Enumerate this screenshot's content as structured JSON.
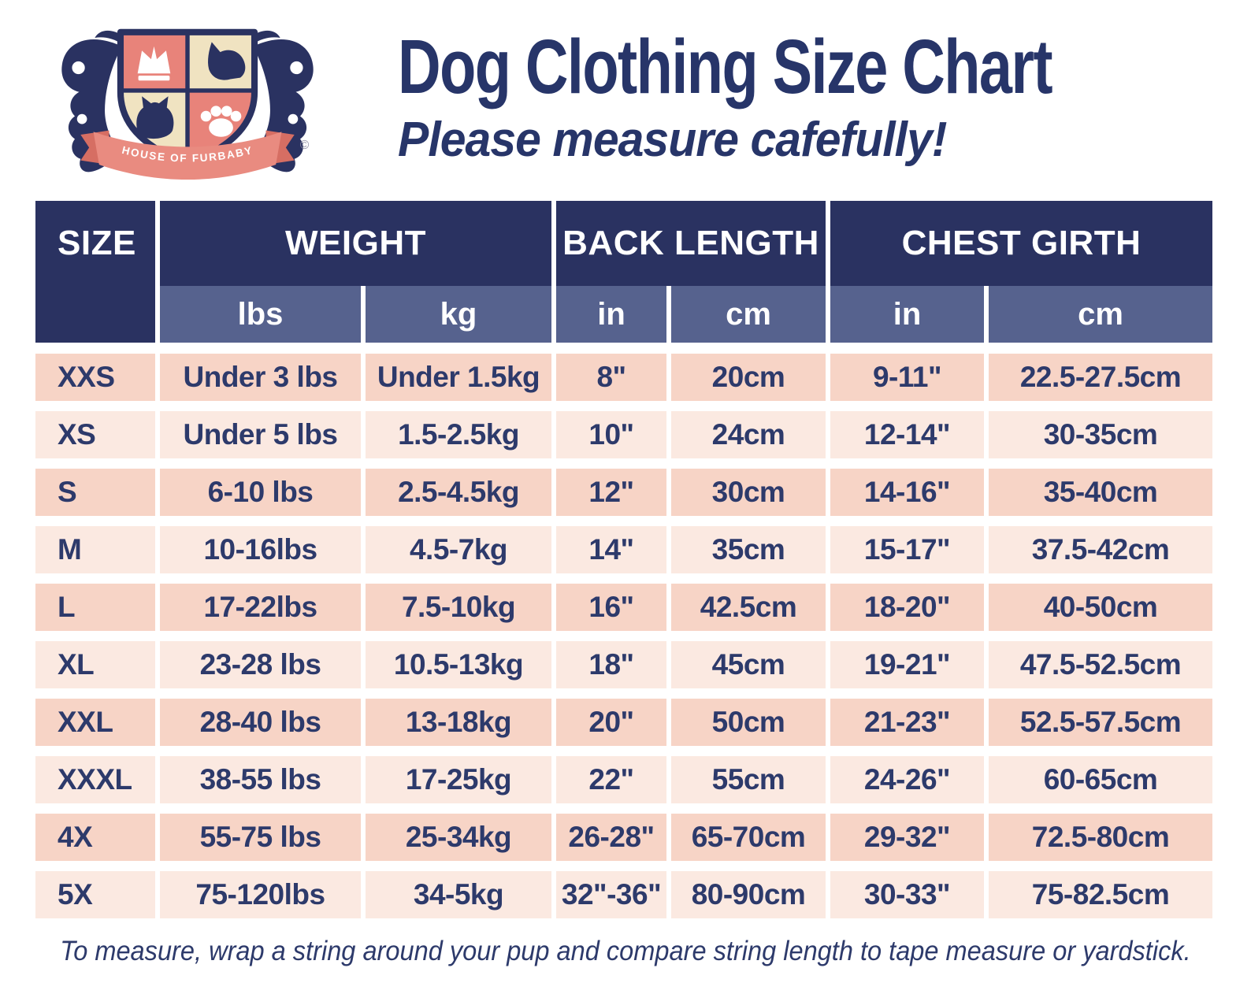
{
  "page": {
    "title": "Dog Clothing Size Chart",
    "subtitle": "Please measure cafefully!",
    "footnote": "To measure, wrap a string around your pup and  compare string length to tape measure or yardstick."
  },
  "logo": {
    "banner_text": "HOUSE OF FURBABY",
    "copyright_mark": "©"
  },
  "colors": {
    "header_navy": "#2a3261",
    "subheader_slate": "#56628e",
    "row_peach_dark": "#f7d4c6",
    "row_peach_light": "#fbe9e1",
    "text_navy": "#2d3a6b",
    "title_navy": "#273569",
    "ribbon_salmon": "#e98b80",
    "shield_salmon": "#e8837a",
    "shield_cream": "#f0e3c1"
  },
  "chart_data": {
    "type": "table",
    "title": "Dog Clothing Size Chart",
    "column_groups": [
      {
        "label": "SIZE",
        "span": 1
      },
      {
        "label": "WEIGHT",
        "span": 2
      },
      {
        "label": "BACK LENGTH",
        "span": 2
      },
      {
        "label": "CHEST GIRTH",
        "span": 2
      }
    ],
    "sub_headers": [
      "lbs",
      "kg",
      "in",
      "cm",
      "in",
      "cm"
    ],
    "rows": [
      [
        "XXS",
        "Under 3 lbs",
        "Under 1.5kg",
        "8\"",
        "20cm",
        "9-11\"",
        "22.5-27.5cm"
      ],
      [
        "XS",
        "Under 5 lbs",
        "1.5-2.5kg",
        "10\"",
        "24cm",
        "12-14\"",
        "30-35cm"
      ],
      [
        "S",
        "6-10 lbs",
        "2.5-4.5kg",
        "12\"",
        "30cm",
        "14-16\"",
        "35-40cm"
      ],
      [
        "M",
        "10-16lbs",
        "4.5-7kg",
        "14\"",
        "35cm",
        "15-17\"",
        "37.5-42cm"
      ],
      [
        "L",
        "17-22lbs",
        "7.5-10kg",
        "16\"",
        "42.5cm",
        "18-20\"",
        "40-50cm"
      ],
      [
        "XL",
        "23-28 lbs",
        "10.5-13kg",
        "18\"",
        "45cm",
        "19-21\"",
        "47.5-52.5cm"
      ],
      [
        "XXL",
        "28-40 lbs",
        "13-18kg",
        "20\"",
        "50cm",
        "21-23\"",
        "52.5-57.5cm"
      ],
      [
        "XXXL",
        "38-55 lbs",
        "17-25kg",
        "22\"",
        "55cm",
        "24-26\"",
        "60-65cm"
      ],
      [
        "4X",
        "55-75 lbs",
        "25-34kg",
        "26-28\"",
        "65-70cm",
        "29-32\"",
        "72.5-80cm"
      ],
      [
        "5X",
        "75-120lbs",
        "34-5kg",
        "32\"-36\"",
        "80-90cm",
        "30-33\"",
        "75-82.5cm"
      ]
    ]
  }
}
